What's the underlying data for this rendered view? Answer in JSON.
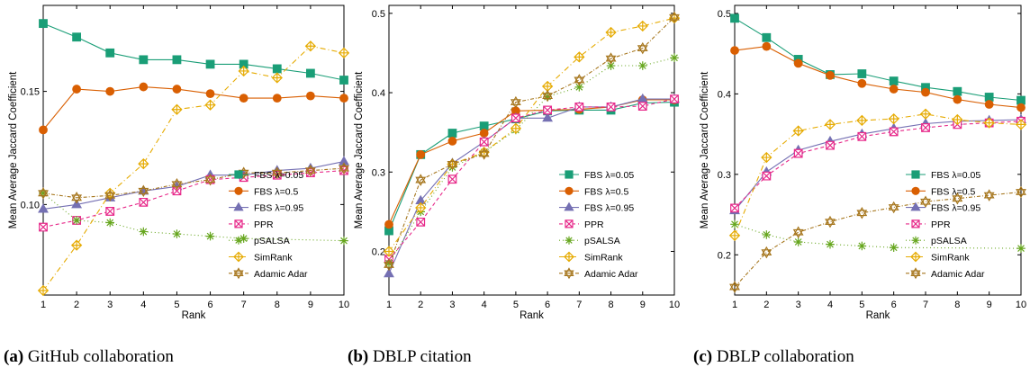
{
  "captions": [
    {
      "letter": "(a)",
      "text": " GitHub collaboration"
    },
    {
      "letter": "(b)",
      "text": " DBLP citation"
    },
    {
      "letter": "(c)",
      "text": " DBLP collaboration"
    }
  ],
  "series_styles": [
    {
      "name": "FBS λ=0.05",
      "color": "#1a9e77",
      "marker": "square",
      "dash": ""
    },
    {
      "name": "FBS λ=0.5",
      "color": "#d95f02",
      "marker": "circle",
      "dash": ""
    },
    {
      "name": "FBS λ=0.95",
      "color": "#7570b3",
      "marker": "triangle",
      "dash": ""
    },
    {
      "name": "PPR",
      "color": "#e7298a",
      "marker": "boxx",
      "dash": "4,3"
    },
    {
      "name": "pSALSA",
      "color": "#66a61e",
      "marker": "asterisk",
      "dash": "1,3"
    },
    {
      "name": "SimRank",
      "color": "#e6ab02",
      "marker": "diamond",
      "dash": "6,3,1,3"
    },
    {
      "name": "Adamic Adar",
      "color": "#a6761d",
      "marker": "star",
      "dash": "4,2,1,2"
    }
  ],
  "chart_data": [
    {
      "type": "line",
      "xlabel": "Rank",
      "ylabel": "Mean Average Jaccard Coefficient",
      "x": [
        1,
        2,
        3,
        4,
        5,
        6,
        7,
        8,
        9,
        10
      ],
      "xlim": [
        1,
        10
      ],
      "ylim": [
        0.06,
        0.188
      ],
      "yticks": [
        0.1,
        0.15
      ],
      "ytick_labels": [
        "0.10",
        "0.15"
      ],
      "grid": false,
      "legend_position": "lower-right",
      "series": [
        {
          "name": "FBS λ=0.05",
          "values": [
            0.18,
            0.174,
            0.167,
            0.164,
            0.164,
            0.162,
            0.162,
            0.16,
            0.158,
            0.155
          ]
        },
        {
          "name": "FBS λ=0.5",
          "values": [
            0.133,
            0.151,
            0.15,
            0.152,
            0.151,
            0.149,
            0.147,
            0.147,
            0.148,
            0.147
          ]
        },
        {
          "name": "FBS λ=0.95",
          "values": [
            0.098,
            0.1,
            0.103,
            0.106,
            0.108,
            0.113,
            0.113,
            0.115,
            0.116,
            0.119
          ]
        },
        {
          "name": "PPR",
          "values": [
            0.09,
            0.093,
            0.097,
            0.101,
            0.106,
            0.111,
            0.112,
            0.113,
            0.114,
            0.115
          ]
        },
        {
          "name": "pSALSA",
          "values": [
            0.105,
            0.093,
            0.092,
            0.088,
            0.087,
            0.086,
            0.085,
            null,
            null,
            0.084
          ]
        },
        {
          "name": "SimRank",
          "values": [
            0.062,
            0.082,
            0.105,
            0.118,
            0.142,
            0.144,
            0.159,
            0.156,
            0.17,
            0.167
          ]
        },
        {
          "name": "Adamic Adar",
          "values": [
            0.105,
            0.103,
            0.104,
            0.106,
            0.109,
            0.111,
            0.114,
            0.114,
            0.115,
            0.116
          ]
        }
      ]
    },
    {
      "type": "line",
      "xlabel": "Rank",
      "ylabel": "Mean Average Jaccard Coefficient",
      "x": [
        1,
        2,
        3,
        4,
        5,
        6,
        7,
        8,
        9,
        10
      ],
      "xlim": [
        1,
        10
      ],
      "ylim": [
        0.145,
        0.51
      ],
      "yticks": [
        0.2,
        0.3,
        0.4,
        0.5
      ],
      "ytick_labels": [
        "0.2",
        "0.3",
        "0.4",
        "0.5"
      ],
      "grid": false,
      "legend_position": "lower-right",
      "series": [
        {
          "name": "FBS λ=0.05",
          "values": [
            0.226,
            0.322,
            0.349,
            0.358,
            0.367,
            0.377,
            0.378,
            0.378,
            0.387,
            0.388
          ]
        },
        {
          "name": "FBS λ=0.5",
          "values": [
            0.234,
            0.322,
            0.339,
            0.349,
            0.377,
            0.378,
            0.379,
            0.382,
            0.391,
            0.391
          ]
        },
        {
          "name": "FBS λ=0.95",
          "values": [
            0.172,
            0.264,
            0.311,
            0.338,
            0.368,
            0.368,
            0.382,
            0.382,
            0.392,
            0.392
          ]
        },
        {
          "name": "PPR",
          "values": [
            0.19,
            0.237,
            0.291,
            0.338,
            0.368,
            0.378,
            0.382,
            0.382,
            0.383,
            0.392
          ]
        },
        {
          "name": "pSALSA",
          "values": [
            0.185,
            0.25,
            0.306,
            0.325,
            0.353,
            0.395,
            0.407,
            0.434,
            0.434,
            0.444
          ]
        },
        {
          "name": "SimRank",
          "values": [
            0.2,
            0.255,
            0.31,
            0.325,
            0.355,
            0.408,
            0.445,
            0.476,
            0.484,
            0.494
          ]
        },
        {
          "name": "Adamic Adar",
          "values": [
            0.183,
            0.29,
            0.31,
            0.323,
            0.388,
            0.396,
            0.416,
            0.443,
            0.456,
            0.495
          ]
        }
      ]
    },
    {
      "type": "line",
      "xlabel": "Rank",
      "ylabel": "Mean Average Jaccard Coefficient",
      "x": [
        1,
        2,
        3,
        4,
        5,
        6,
        7,
        8,
        9,
        10
      ],
      "xlim": [
        1,
        10
      ],
      "ylim": [
        0.15,
        0.51
      ],
      "yticks": [
        0.2,
        0.3,
        0.4,
        0.5
      ],
      "ytick_labels": [
        "0.2",
        "0.3",
        "0.4",
        "0.5"
      ],
      "grid": false,
      "legend_position": "lower-right",
      "series": [
        {
          "name": "FBS λ=0.05",
          "values": [
            0.494,
            0.47,
            0.443,
            0.424,
            0.425,
            0.416,
            0.408,
            0.403,
            0.396,
            0.392
          ]
        },
        {
          "name": "FBS λ=0.5",
          "values": [
            0.454,
            0.459,
            0.438,
            0.423,
            0.413,
            0.406,
            0.402,
            0.393,
            0.387,
            0.383
          ]
        },
        {
          "name": "FBS λ=0.95",
          "values": [
            0.255,
            0.303,
            0.33,
            0.341,
            0.35,
            0.357,
            0.363,
            0.366,
            0.367,
            0.368
          ]
        },
        {
          "name": "PPR",
          "values": [
            0.258,
            0.298,
            0.326,
            0.336,
            0.347,
            0.353,
            0.358,
            0.362,
            0.364,
            0.366
          ]
        },
        {
          "name": "pSALSA",
          "values": [
            0.238,
            0.225,
            0.216,
            0.213,
            0.211,
            0.209,
            null,
            null,
            null,
            0.208
          ]
        },
        {
          "name": "SimRank",
          "values": [
            0.224,
            0.321,
            0.354,
            0.362,
            0.367,
            0.369,
            0.375,
            0.368,
            0.364,
            0.362
          ]
        },
        {
          "name": "Adamic Adar",
          "values": [
            0.16,
            0.203,
            0.228,
            0.241,
            0.252,
            0.259,
            0.266,
            0.27,
            0.274,
            0.278
          ]
        }
      ]
    }
  ]
}
